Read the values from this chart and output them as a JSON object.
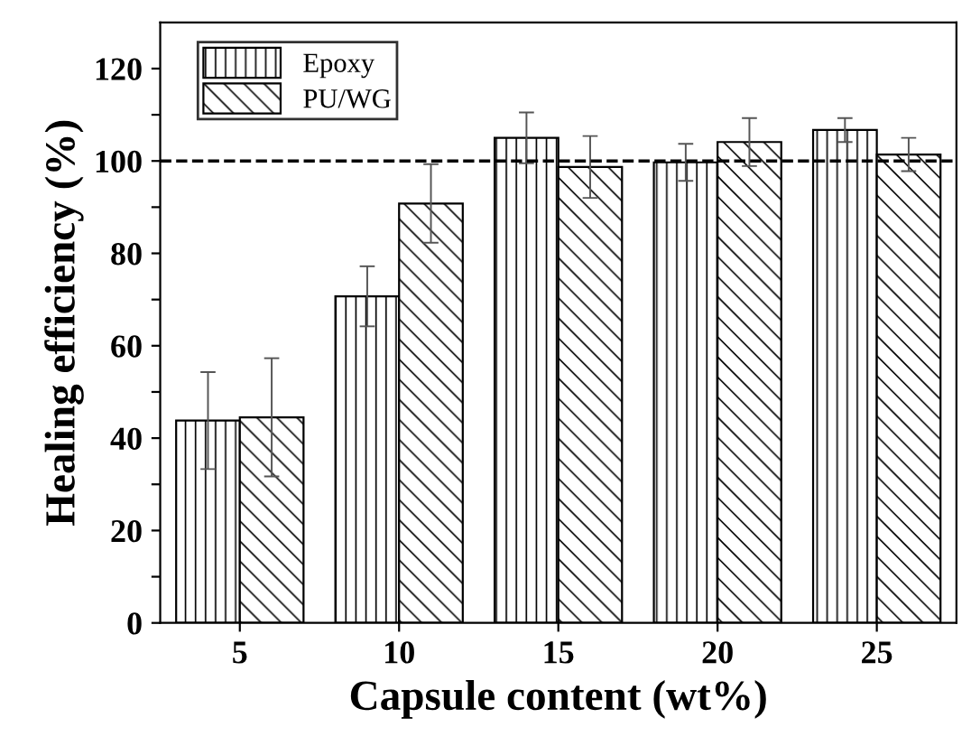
{
  "chart_data": {
    "type": "bar",
    "xlabel": "Capsule content (wt%)",
    "ylabel": "Healing efficiency (%)",
    "categories": [
      "5",
      "10",
      "15",
      "20",
      "25"
    ],
    "series": [
      {
        "name": "Epoxy",
        "color": "#000000",
        "values": [
          43.8,
          70.7,
          105,
          99.7,
          106.7
        ],
        "errors": [
          10.5,
          6.5,
          5.5,
          4,
          2.6
        ]
      },
      {
        "name": "PU/WG",
        "color": "#000000",
        "values": [
          44.5,
          90.8,
          98.7,
          104.1,
          101.4
        ],
        "errors": [
          12.8,
          8.5,
          6.7,
          5.2,
          3.6
        ]
      }
    ],
    "ylim": [
      0,
      130
    ],
    "yticks": [
      0,
      {
        "value": 10,
        "label": null
      },
      20,
      {
        "value": 30,
        "label": null
      },
      40,
      {
        "value": 50,
        "label": null
      },
      60,
      {
        "value": 70,
        "label": null
      },
      80,
      {
        "value": 90,
        "label": null
      },
      100,
      {
        "value": 110,
        "label": null
      },
      120
    ],
    "ref_lines": [
      {
        "axis": "y",
        "value": 100,
        "color": "#000000",
        "line_style": "dashed"
      }
    ],
    "legend": "top left",
    "grid": false
  }
}
